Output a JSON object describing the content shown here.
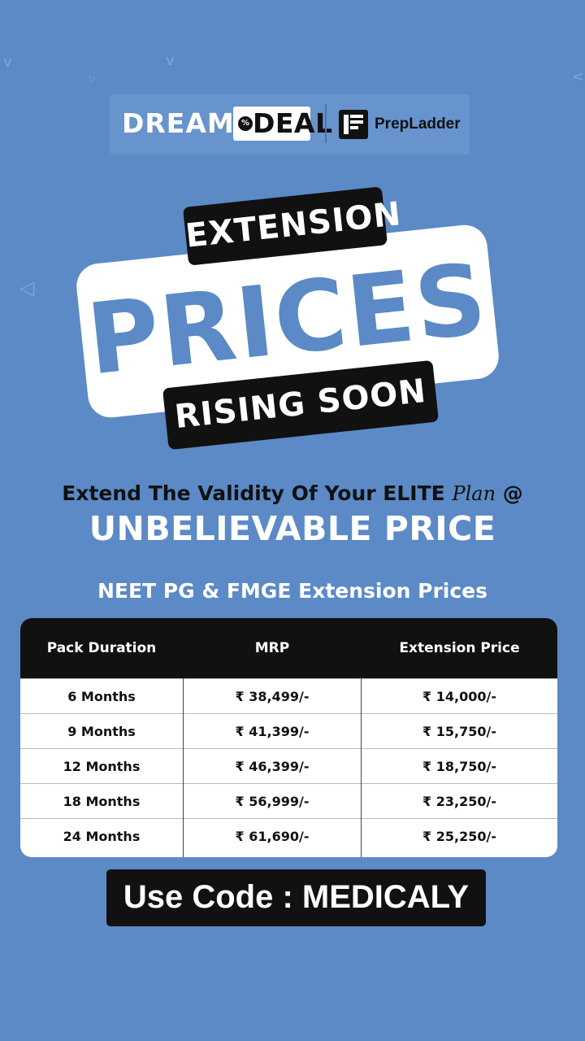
{
  "logo": {
    "dream": "DREAM",
    "deal": "DEAL",
    "deal_badge": "%",
    "brand": "PrepLadder"
  },
  "hero": {
    "extension": "EXTENSION",
    "prices": "PRICES",
    "rising_soon": "RISING SOON"
  },
  "subtitle": {
    "prefix": "Extend The Validity Of Your ",
    "elite": "ELITE",
    "plan": "Plan",
    "suffix": " @",
    "headline": "UNBELIEVABLE PRICE"
  },
  "table": {
    "title": "NEET PG & FMGE Extension Prices",
    "headers": [
      "Pack Duration",
      "MRP",
      "Extension Price"
    ],
    "rows": [
      [
        "6 Months",
        "₹ 38,499/-",
        "₹ 14,000/-"
      ],
      [
        "9 Months",
        "₹ 41,399/-",
        "₹ 15,750/-"
      ],
      [
        "12 Months",
        "₹ 46,399/-",
        "₹ 18,750/-"
      ],
      [
        "18 Months",
        "₹ 56,999/-",
        "₹ 23,250/-"
      ],
      [
        "24 Months",
        "₹ 61,690/-",
        "₹ 25,250/-"
      ]
    ]
  },
  "code": {
    "label": "Use Code : MEDICALY"
  },
  "colors": {
    "background": "#5b8ac6",
    "dark": "#111111",
    "white": "#ffffff"
  }
}
